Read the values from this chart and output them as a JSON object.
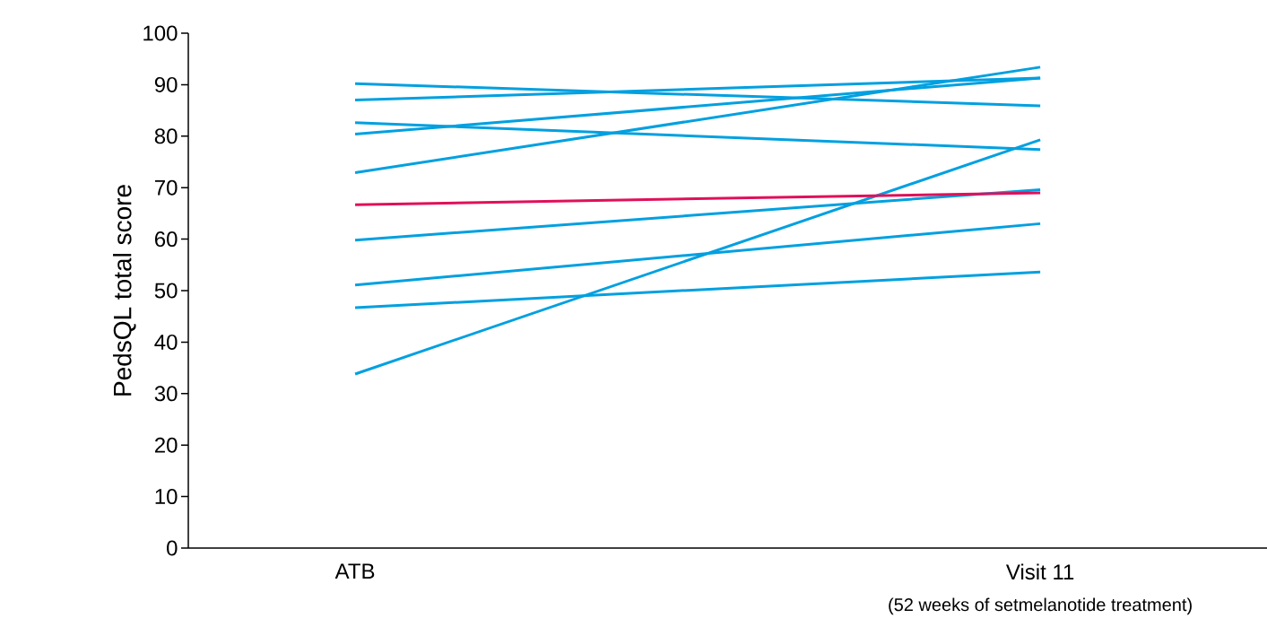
{
  "chart_data": {
    "type": "line",
    "ylabel": "PedsQL total score",
    "categories": [
      "ATB",
      "Visit 11"
    ],
    "annotations": [
      "(52 weeks of setmelanotide treatment)"
    ],
    "ylim": [
      0,
      100
    ],
    "yticks": [
      0,
      10,
      20,
      30,
      40,
      50,
      60,
      70,
      80,
      90,
      100
    ],
    "grid": false,
    "marker": "none",
    "line_style": "solid",
    "series": [
      {
        "color": "#00a0e0",
        "values": [
          90.2,
          85.9
        ]
      },
      {
        "color": "#00a0e0",
        "values": [
          87.0,
          91.3
        ]
      },
      {
        "color": "#00a0e0",
        "values": [
          82.6,
          77.4
        ]
      },
      {
        "color": "#00a0e0",
        "values": [
          80.4,
          91.3
        ]
      },
      {
        "color": "#00a0e0",
        "values": [
          72.9,
          93.4
        ]
      },
      {
        "color": "#00a0e0",
        "values": [
          59.8,
          69.6
        ]
      },
      {
        "color": "#00a0e0",
        "values": [
          51.1,
          63.0
        ]
      },
      {
        "color": "#00a0e0",
        "values": [
          46.7,
          53.6
        ]
      },
      {
        "color": "#00a0e0",
        "values": [
          33.8,
          79.3
        ]
      },
      {
        "color": "#e0105a",
        "values": [
          66.7,
          69.0
        ]
      }
    ]
  }
}
